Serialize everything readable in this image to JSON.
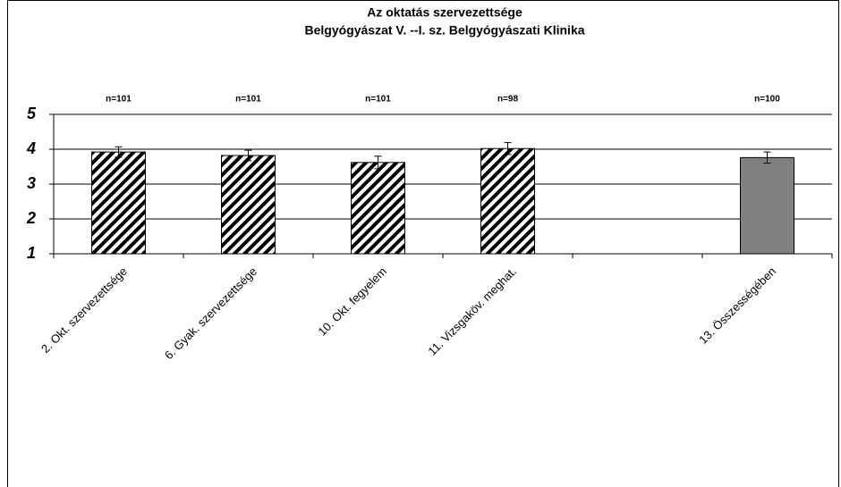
{
  "chart_data": {
    "type": "bar",
    "title": [
      "Az oktatás szervezettsége",
      "Belgyógyászat V. --I. sz. Belgyógyászati Klinika"
    ],
    "categories": [
      "2. Okt. szervezettsége",
      "6. Gyak. szervezettsége",
      "10. Okt. fegyelem",
      "11. Vizsgaköv. meghat.",
      null,
      "13. Összességében"
    ],
    "values": [
      3.92,
      3.82,
      3.62,
      4.02,
      null,
      3.76
    ],
    "errors": [
      0.15,
      0.15,
      0.18,
      0.17,
      null,
      0.16
    ],
    "annotations": [
      "n=101",
      "n=101",
      "n=101",
      "n=98",
      null,
      "n=100"
    ],
    "colors": [
      "#000000",
      "#000000",
      "#000000",
      "#000000",
      null,
      "#808080"
    ],
    "hatched": [
      true,
      true,
      true,
      true,
      null,
      false
    ],
    "ylim": [
      1,
      5
    ],
    "yticks": [
      1,
      2,
      3,
      4,
      5
    ],
    "grid": true
  }
}
